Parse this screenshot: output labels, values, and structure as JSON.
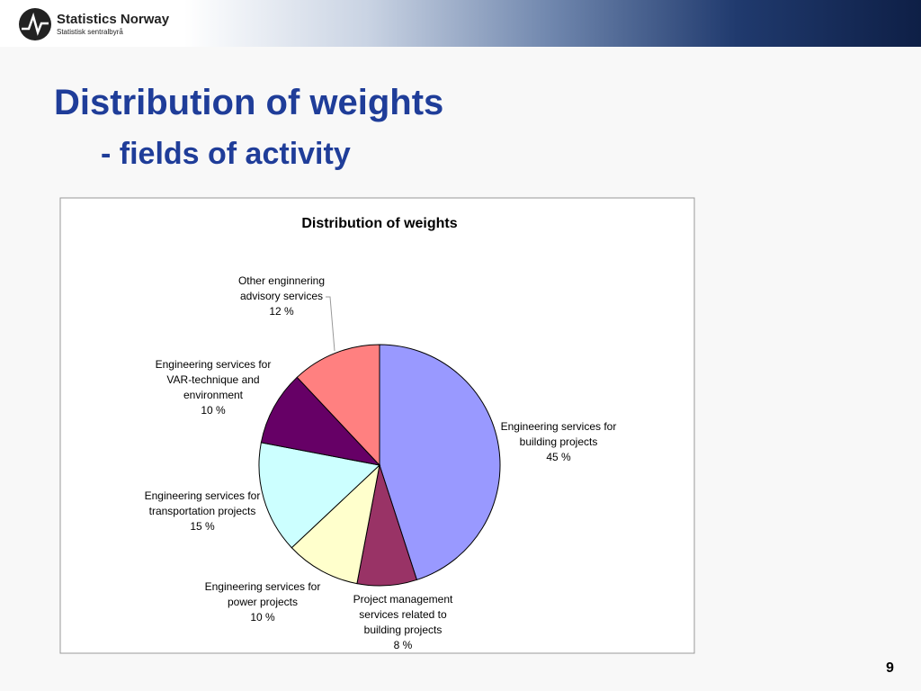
{
  "header": {
    "brand": "Statistics Norway",
    "brand_sub": "Statistisk sentralbyrå"
  },
  "slide": {
    "title": "Distribution of weights",
    "subtitle": "- fields of activity",
    "page_number": "9"
  },
  "chart_data": {
    "type": "pie",
    "title": "Distribution of weights",
    "categories": [
      "Engineering services for building projects",
      "Project management services related to building projects",
      "Engineering services for power projects",
      "Engineering services for transportation projects",
      "Engineering services for VAR-technique and environment",
      "Other enginnering advisory services"
    ],
    "values": [
      45,
      8,
      10,
      15,
      10,
      12
    ],
    "value_labels": [
      "45 %",
      "8 %",
      "10 %",
      "15 %",
      "10 %",
      "12 %"
    ],
    "colors": [
      "#9999ff",
      "#993366",
      "#ffffcc",
      "#ccffff",
      "#660066",
      "#ff8080"
    ]
  }
}
